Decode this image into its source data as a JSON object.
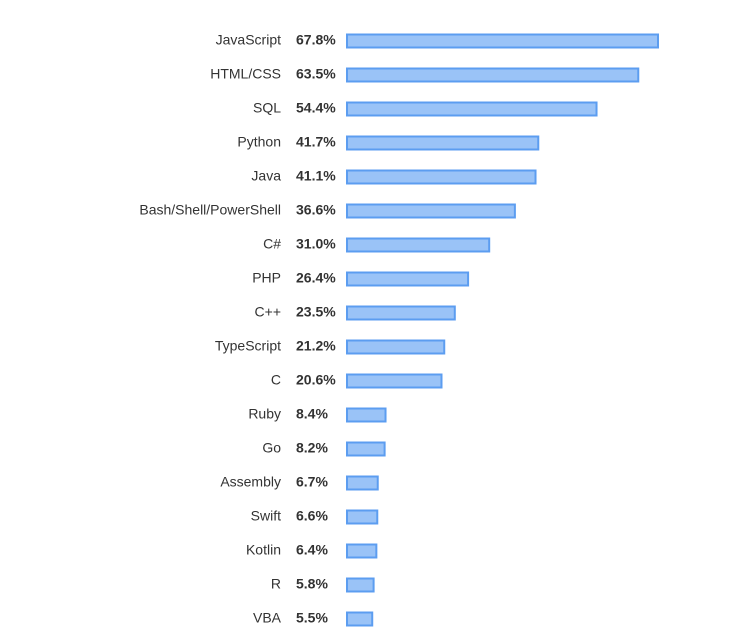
{
  "chart_data": {
    "type": "bar",
    "orientation": "horizontal",
    "categories": [
      "JavaScript",
      "HTML/CSS",
      "SQL",
      "Python",
      "Java",
      "Bash/Shell/PowerShell",
      "C#",
      "PHP",
      "C++",
      "TypeScript",
      "C",
      "Ruby",
      "Go",
      "Assembly",
      "Swift",
      "Kotlin",
      "R",
      "VBA"
    ],
    "values": [
      67.8,
      63.5,
      54.4,
      41.7,
      41.1,
      36.6,
      31.0,
      26.4,
      23.5,
      21.2,
      20.6,
      8.4,
      8.2,
      6.7,
      6.6,
      6.4,
      5.8,
      5.5
    ],
    "value_labels": [
      "67.8%",
      "63.5%",
      "54.4%",
      "41.7%",
      "41.1%",
      "36.6%",
      "31.0%",
      "26.4%",
      "23.5%",
      "21.2%",
      "20.6%",
      "8.4%",
      "8.2%",
      "6.7%",
      "6.6%",
      "6.4%",
      "5.8%",
      "5.5%"
    ],
    "color": "#9ac3f7",
    "edgecolor": "#5c9df0"
  }
}
